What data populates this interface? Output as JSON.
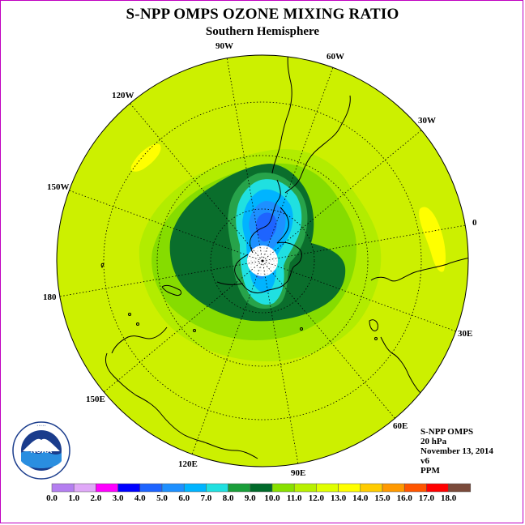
{
  "title": "S-NPP OMPS OZONE MIXING RATIO",
  "subtitle": "Southern Hemisphere",
  "longitude_labels": [
    "90W",
    "60W",
    "30W",
    "0",
    "30E",
    "60E",
    "90E",
    "120E",
    "150E",
    "180",
    "150W",
    "120W"
  ],
  "info": {
    "instrument": "S-NPP OMPS",
    "pressure": "20 hPa",
    "date": "November 13, 2014",
    "version": "v6",
    "units": "PPM"
  },
  "logo": {
    "text": "NOAA",
    "ring_text": "NATIONAL OCEANIC AND ATMOSPHERIC ADMINISTRATION · U.S. DEPARTMENT OF COMMERCE"
  },
  "colorbar": {
    "ticks": [
      "0.0",
      "1.0",
      "2.0",
      "3.0",
      "4.0",
      "5.0",
      "6.0",
      "7.0",
      "8.0",
      "9.0",
      "10.0",
      "11.0",
      "12.0",
      "13.0",
      "14.0",
      "15.0",
      "16.0",
      "17.0",
      "18.0"
    ],
    "colors": [
      "#b47ef0",
      "#e0a8f8",
      "#ff00ff",
      "#0000ff",
      "#1e64ff",
      "#1e90ff",
      "#00b4ff",
      "#20e0e0",
      "#1a9e3a",
      "#006a2a",
      "#88e000",
      "#b8f000",
      "#e0ff00",
      "#ffff00",
      "#ffcc00",
      "#ff9900",
      "#ff5500",
      "#ff0000",
      "#7a4a3a"
    ]
  },
  "colors": {
    "background_field": "#ccf000",
    "frame": "#c000c0"
  }
}
